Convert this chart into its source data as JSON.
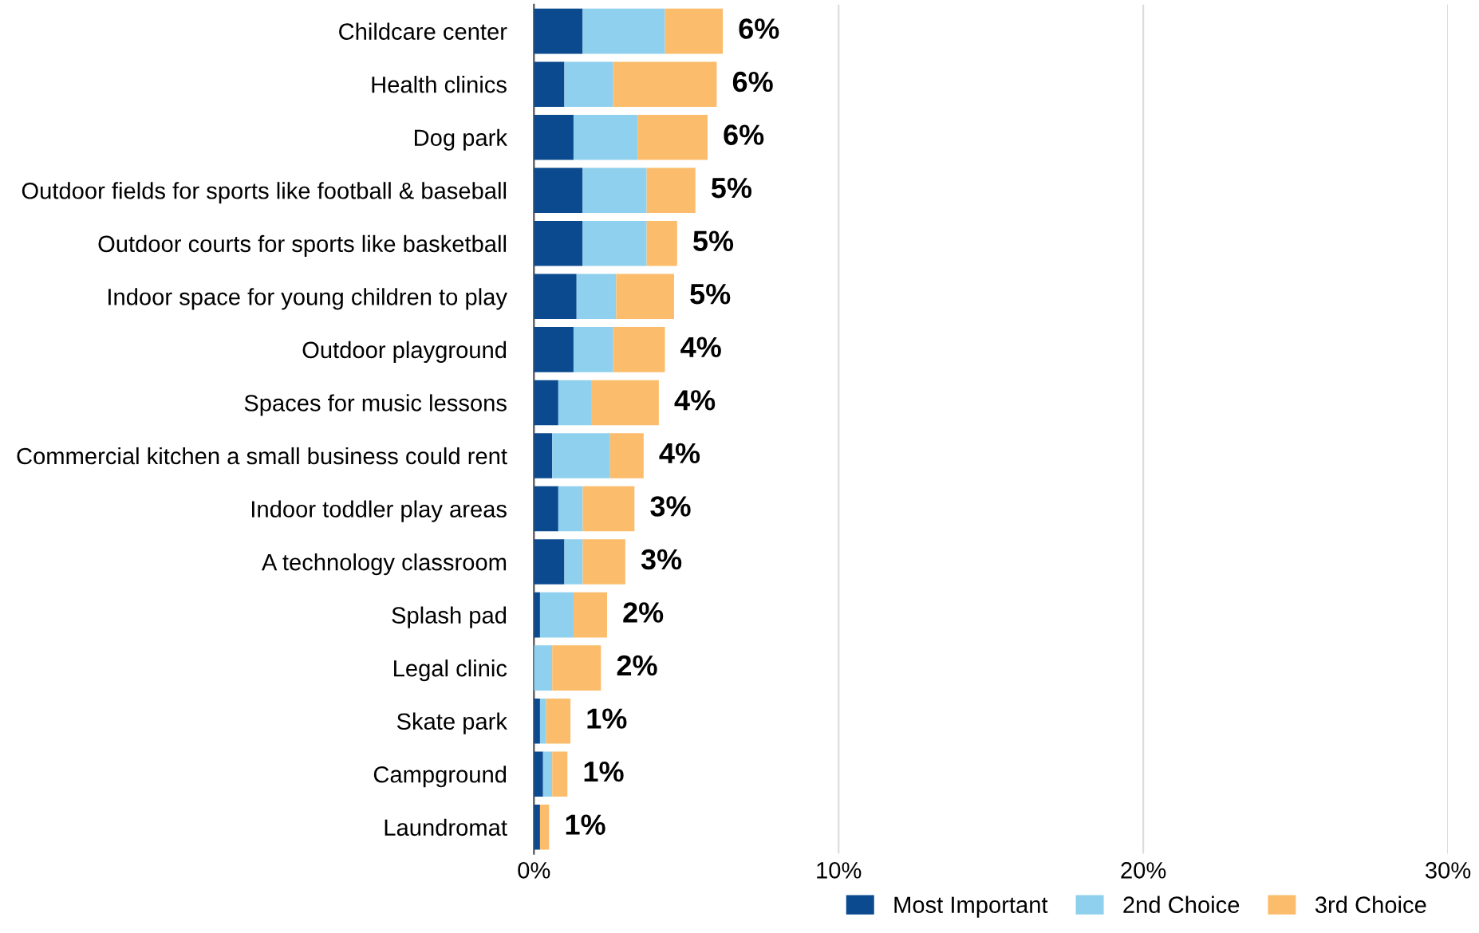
{
  "chart_data": {
    "type": "bar",
    "orientation": "horizontal",
    "stacked": true,
    "categories": [
      "Childcare center",
      "Health clinics",
      "Dog park",
      "Outdoor fields for sports like football & baseball",
      "Outdoor courts for sports like basketball",
      "Indoor space for young children to play",
      "Outdoor playground",
      "Spaces for music lessons",
      "Commercial kitchen a small business could rent",
      "Indoor toddler play areas",
      "A technology classroom",
      "Splash pad",
      "Legal clinic",
      "Skate park",
      "Campground",
      "Laundromat"
    ],
    "series": [
      {
        "name": "Most Important",
        "color": "#0b4a8f",
        "values": [
          1.6,
          1.0,
          1.3,
          1.6,
          1.6,
          1.4,
          1.3,
          0.8,
          0.6,
          0.8,
          1.0,
          0.2,
          0.0,
          0.2,
          0.3,
          0.2
        ]
      },
      {
        "name": "2nd Choice",
        "color": "#8fd0ee",
        "values": [
          2.7,
          1.6,
          2.1,
          2.1,
          2.1,
          1.3,
          1.3,
          1.1,
          1.9,
          0.8,
          0.6,
          1.1,
          0.6,
          0.2,
          0.3,
          0.0
        ]
      },
      {
        "name": "3rd Choice",
        "color": "#fbbd6b",
        "values": [
          1.9,
          3.4,
          2.3,
          1.6,
          1.0,
          1.9,
          1.7,
          2.2,
          1.1,
          1.7,
          1.4,
          1.1,
          1.6,
          0.8,
          0.5,
          0.3
        ]
      }
    ],
    "totals": [
      "6%",
      "6%",
      "6%",
      "5%",
      "5%",
      "5%",
      "4%",
      "4%",
      "4%",
      "3%",
      "3%",
      "2%",
      "2%",
      "1%",
      "1%",
      "1%"
    ],
    "xlim": [
      0,
      30
    ],
    "xticks": [
      {
        "value": 0,
        "label": "0%"
      },
      {
        "value": 10,
        "label": "10%"
      },
      {
        "value": 20,
        "label": "20%"
      },
      {
        "value": 30,
        "label": "30%"
      }
    ],
    "grid": "x",
    "legend": "bottom right"
  }
}
